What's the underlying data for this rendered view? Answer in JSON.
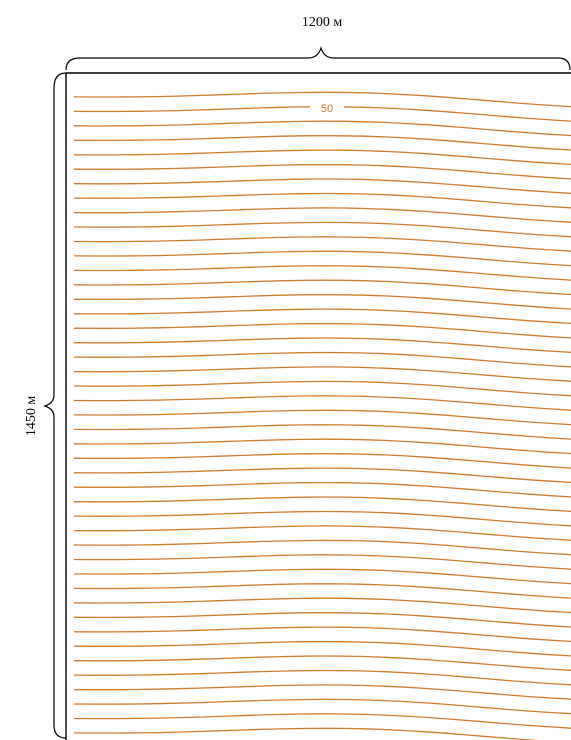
{
  "diagram": {
    "width_label": "1200 м",
    "height_label": "1450 м",
    "contour_label": "50"
  },
  "colors": {
    "contour": "#d07a2c",
    "border": "#000000",
    "background": "#ffffff"
  }
}
